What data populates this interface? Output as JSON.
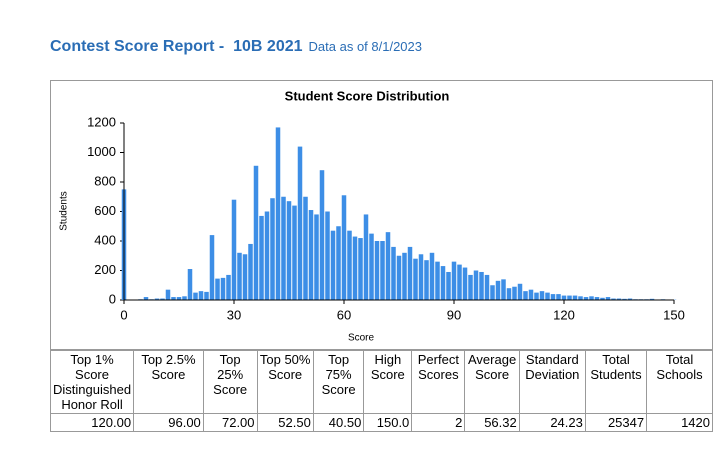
{
  "header": {
    "title": "Contest Score Report -  10B 2021",
    "subtitle": "Data as of 8/1/2023"
  },
  "chart_data": {
    "type": "bar",
    "title": "Student Score Distribution",
    "x_label": "Score",
    "y_label": "Students",
    "color": "#3d8ee6",
    "x": [
      0,
      1.5,
      3,
      4.5,
      6,
      7.5,
      9,
      10.5,
      12,
      13.5,
      15,
      16.5,
      18,
      19.5,
      21,
      22.5,
      24,
      25.5,
      27,
      28.5,
      30,
      31.5,
      33,
      34.5,
      36,
      37.5,
      39,
      40.5,
      42,
      43.5,
      45,
      46.5,
      48,
      49.5,
      51,
      52.5,
      54,
      55.5,
      57,
      58.5,
      60,
      61.5,
      63,
      64.5,
      66,
      67.5,
      69,
      70.5,
      72,
      73.5,
      75,
      76.5,
      78,
      79.5,
      81,
      82.5,
      84,
      85.5,
      87,
      88.5,
      90,
      91.5,
      93,
      94.5,
      96,
      97.5,
      99,
      100.5,
      102,
      103.5,
      105,
      106.5,
      108,
      109.5,
      111,
      112.5,
      114,
      115.5,
      117,
      118.5,
      120,
      121.5,
      123,
      124.5,
      126,
      127.5,
      129,
      130.5,
      132,
      133.5,
      135,
      136.5,
      138,
      139.5,
      141,
      142.5,
      144,
      145.5,
      147,
      148.5,
      150
    ],
    "values": [
      750,
      0,
      0,
      5,
      20,
      5,
      10,
      10,
      70,
      20,
      20,
      25,
      210,
      50,
      60,
      55,
      440,
      145,
      150,
      170,
      680,
      320,
      310,
      380,
      910,
      570,
      600,
      690,
      1170,
      700,
      670,
      640,
      1040,
      700,
      610,
      580,
      880,
      600,
      470,
      500,
      710,
      470,
      430,
      420,
      580,
      450,
      400,
      400,
      460,
      360,
      300,
      320,
      360,
      280,
      310,
      270,
      320,
      260,
      230,
      190,
      260,
      240,
      220,
      170,
      200,
      190,
      170,
      100,
      130,
      140,
      80,
      90,
      110,
      60,
      70,
      50,
      60,
      50,
      40,
      40,
      30,
      30,
      30,
      25,
      20,
      25,
      20,
      15,
      20,
      10,
      10,
      8,
      10,
      5,
      5,
      5,
      8,
      3,
      5,
      3,
      2
    ],
    "xlim": [
      0,
      150
    ],
    "xticks": [
      0,
      30,
      60,
      90,
      120,
      150
    ],
    "ylim": [
      0,
      1200
    ],
    "yticks": [
      0,
      200,
      400,
      600,
      800,
      1000,
      1200
    ],
    "grid": false
  },
  "table": {
    "headers": [
      "Top 1% Score Distinguished Honor Roll",
      "Top 2.5% Score",
      "Top 25% Score",
      "Top 50% Score",
      "Top 75% Score",
      "High Score",
      "Perfect Scores",
      "Average Score",
      "Standard Deviation",
      "Total Students",
      "Total Schools"
    ],
    "rows": [
      [
        "120.00",
        "96.00",
        "72.00",
        "52.50",
        "40.50",
        "150.0",
        "2",
        "56.32",
        "24.23",
        "25347",
        "1420"
      ]
    ]
  }
}
